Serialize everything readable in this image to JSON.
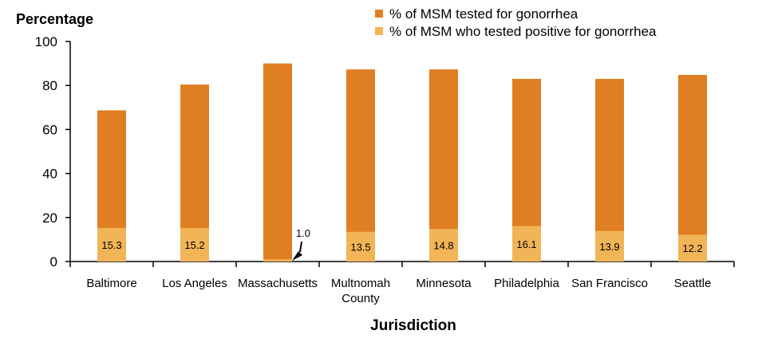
{
  "chart_data": {
    "type": "bar",
    "stacking": "overlay",
    "ylabel": "Percentage",
    "xlabel": "Jurisdiction",
    "ylim": [
      0,
      100
    ],
    "yticks": [
      0,
      20,
      40,
      60,
      80,
      100
    ],
    "grid": false,
    "legend_position": "top-right",
    "categories": [
      "Baltimore",
      "Los Angeles",
      "Massachusetts",
      "Multnomah County",
      "Minnesota",
      "Philadelphia",
      "San Francisco",
      "Seattle"
    ],
    "series": [
      {
        "name": "% of MSM tested for gonorrhea",
        "color": "#E07E22",
        "values": [
          68.7,
          80.4,
          90.0,
          87.3,
          87.3,
          83.0,
          83.0,
          84.8
        ]
      },
      {
        "name": "% of MSM who tested positive for gonorrhea",
        "color": "#F1B457",
        "values": [
          15.3,
          15.2,
          1.0,
          13.5,
          14.8,
          16.1,
          13.9,
          12.2
        ],
        "labels": [
          "15.3",
          "15.2",
          "1.0",
          "13.5",
          "14.8",
          "16.1",
          "13.9",
          "12.2"
        ]
      }
    ]
  }
}
